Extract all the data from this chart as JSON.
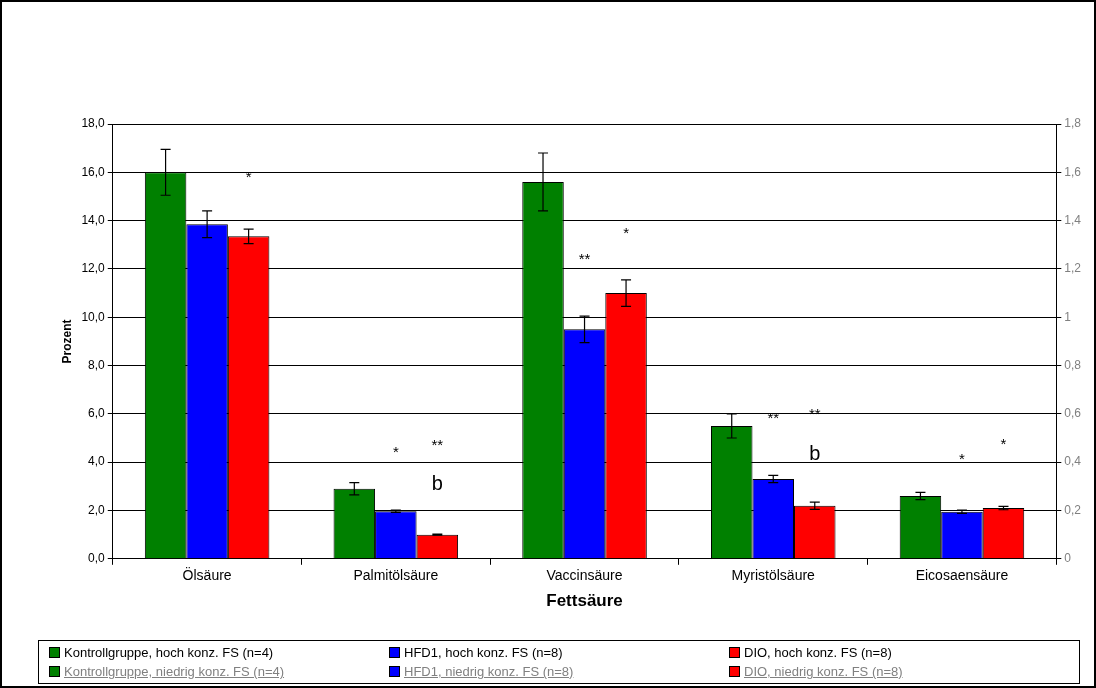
{
  "chart_data": {
    "type": "bar",
    "xlabel": "Fettsäure",
    "ylabel": "Prozent",
    "categories": [
      "Ölsäure",
      "Palmitölsäure",
      "Vaccinsäure",
      "Myristölsäure",
      "Eicosaensäure"
    ],
    "series": [
      {
        "name": "Kontrollgruppe, hoch konz. FS (n=4)",
        "color": "#008000",
        "values": [
          16.0,
          2.9,
          null,
          null,
          null
        ],
        "errors": [
          0.95,
          0.25,
          null,
          null,
          null
        ]
      },
      {
        "name": "HFD1, hoch konz. FS (n=8)",
        "color": "#0000ff",
        "values": [
          13.85,
          1.97,
          null,
          null,
          null
        ],
        "errors": [
          0.55,
          0.05,
          null,
          null,
          null
        ]
      },
      {
        "name": "DIO, hoch konz. FS (n=8)",
        "color": "#ff0000",
        "values": [
          13.35,
          1.0,
          null,
          null,
          null
        ],
        "errors": [
          0.3,
          0.02,
          null,
          null,
          null
        ]
      },
      {
        "name": "Kontrollgruppe, niedrig konz. FS (n=4)",
        "color": "#008000",
        "axis": "y2",
        "values": [
          null,
          null,
          1.56,
          0.55,
          0.26
        ],
        "errors": [
          null,
          null,
          0.12,
          0.05,
          0.015
        ]
      },
      {
        "name": "HFD1, niedrig konz. FS (n=8)",
        "color": "#0000ff",
        "axis": "y2",
        "values": [
          null,
          null,
          0.95,
          0.33,
          0.195
        ],
        "errors": [
          null,
          null,
          0.055,
          0.015,
          0.007
        ]
      },
      {
        "name": "DIO, niedrig konz. FS (n=8)",
        "color": "#ff0000",
        "axis": "y2",
        "values": [
          null,
          null,
          1.1,
          0.22,
          0.21
        ],
        "errors": [
          null,
          null,
          0.055,
          0.015,
          0.007
        ]
      }
    ],
    "ylim": [
      0,
      18
    ],
    "yticks": [
      {
        "value": 0,
        "label": "0,0"
      },
      {
        "value": 2,
        "label": "2,0"
      },
      {
        "value": 4,
        "label": "4,0"
      },
      {
        "value": 6,
        "label": "6,0"
      },
      {
        "value": 8,
        "label": "8,0"
      },
      {
        "value": 10,
        "label": "10,0"
      },
      {
        "value": 12,
        "label": "12,0"
      },
      {
        "value": 14,
        "label": "14,0"
      },
      {
        "value": 16,
        "label": "16,0"
      },
      {
        "value": 18,
        "label": "18,0"
      }
    ],
    "y2lim": [
      0,
      1.8
    ],
    "y2ticks": [
      0,
      {
        "value": 0.2,
        "label": "0,2"
      },
      {
        "value": 0.4,
        "label": "0,4"
      },
      {
        "value": 0.6,
        "label": "0,6"
      },
      {
        "value": 0.8,
        "label": "0,8"
      },
      1,
      {
        "value": 1.2,
        "label": "1,2"
      },
      {
        "value": 1.4,
        "label": "1,4"
      },
      {
        "value": 1.6,
        "label": "1,6"
      },
      {
        "value": 1.8,
        "label": "1,8"
      }
    ],
    "grid": "y",
    "legend": "bottom",
    "annotations": [
      "*",
      "*",
      "**",
      "b",
      "**",
      "*",
      "**",
      "**",
      "b",
      "*",
      "*"
    ]
  }
}
